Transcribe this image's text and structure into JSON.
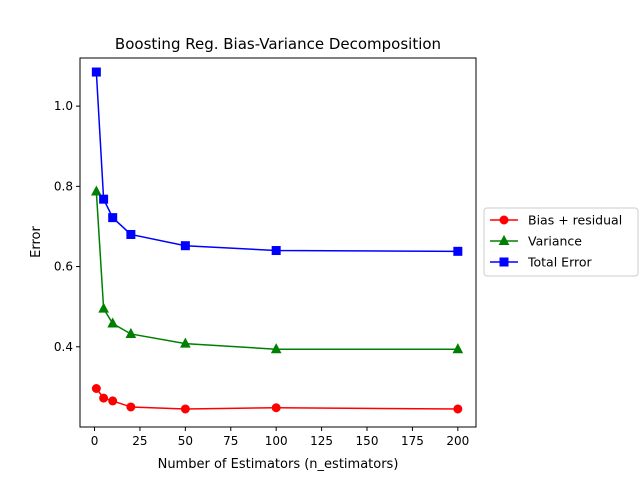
{
  "chart_data": {
    "type": "line",
    "title": "Boosting Reg. Bias-Variance Decomposition",
    "xlabel": "Number of Estimators (n_estimators)",
    "ylabel": "Error",
    "xlim": [
      -8,
      210
    ],
    "ylim": [
      0.2,
      1.12
    ],
    "xticks": [
      0,
      25,
      50,
      75,
      100,
      125,
      150,
      175,
      200
    ],
    "yticks": [
      0.4,
      0.6,
      0.8,
      1.0
    ],
    "xtick_labels": [
      "0",
      "25",
      "50",
      "75",
      "100",
      "125",
      "150",
      "175",
      "200"
    ],
    "ytick_labels": [
      "0.4",
      "0.6",
      "0.8",
      "1.0"
    ],
    "grid": false,
    "legend_position": "outside-right",
    "x": [
      1,
      5,
      10,
      20,
      50,
      100,
      200
    ],
    "series": [
      {
        "name": "Bias + residual",
        "color": "#ff0000",
        "marker": "circle",
        "values": [
          0.296,
          0.272,
          0.265,
          0.25,
          0.245,
          0.248,
          0.245
        ]
      },
      {
        "name": "Variance",
        "color": "#008000",
        "marker": "triangle",
        "values": [
          0.787,
          0.495,
          0.458,
          0.432,
          0.408,
          0.394,
          0.394
        ]
      },
      {
        "name": "Total Error",
        "color": "#0000ff",
        "marker": "square",
        "values": [
          1.085,
          0.768,
          0.722,
          0.68,
          0.652,
          0.64,
          0.638
        ]
      }
    ]
  }
}
